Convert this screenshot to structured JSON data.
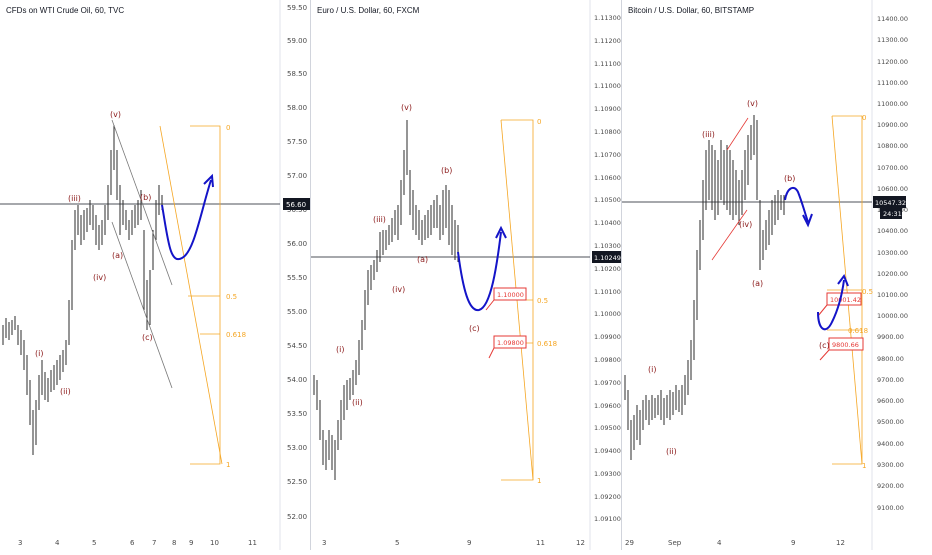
{
  "panels": [
    {
      "title": "CFDs on WTI Crude Oil, 60, TVC",
      "y_ticks": [
        "59.50",
        "59.00",
        "58.50",
        "58.00",
        "57.50",
        "57.00",
        "56.50",
        "56.00",
        "55.50",
        "55.00",
        "54.50",
        "54.00",
        "53.50",
        "53.00",
        "52.50",
        "52.00"
      ],
      "x_ticks": [
        "3",
        "4",
        "5",
        "6",
        "7",
        "8",
        "9",
        "10",
        "11"
      ],
      "price_label": "56.60",
      "wave_labels": [
        "(i)",
        "(ii)",
        "(iii)",
        "(iv)",
        "(v)",
        "(a)",
        "(b)",
        "(c)"
      ],
      "fib_labels": [
        "0",
        "0.5",
        "0.618",
        "1"
      ],
      "accent": "#8b1a1a"
    },
    {
      "title": "Euro / U.S. Dollar, 60, FXCM",
      "y_ticks": [
        "1.11300",
        "1.11200",
        "1.11100",
        "1.11000",
        "1.10900",
        "1.10800",
        "1.10700",
        "1.10600",
        "1.10500",
        "1.10400",
        "1.10300",
        "1.10200",
        "1.10100",
        "1.10000",
        "1.09900",
        "1.09800",
        "1.09700",
        "1.09600",
        "1.09500",
        "1.09400",
        "1.09300",
        "1.09200",
        "1.09100"
      ],
      "x_ticks": [
        "3",
        "5",
        "9",
        "11",
        "12"
      ],
      "price_label": "1.10249",
      "wave_labels": [
        "(i)",
        "(ii)",
        "(iii)",
        "(iv)",
        "(v)",
        "(a)",
        "(b)",
        "(c)"
      ],
      "fib_labels": [
        "0",
        "0.5",
        "0.618",
        "1"
      ],
      "callouts": [
        "1.10000",
        "1.09800"
      ],
      "accent": "#8b1a1a"
    },
    {
      "title": "Bitcoin / U.S. Dollar, 60, BITSTAMP",
      "y_ticks": [
        "11400.00",
        "11300.00",
        "11200.00",
        "11100.00",
        "11000.00",
        "10900.00",
        "10800.00",
        "10700.00",
        "10600.00",
        "10500.00",
        "10400.00",
        "10300.00",
        "10200.00",
        "10100.00",
        "10000.00",
        "9900.00",
        "9800.00",
        "9700.00",
        "9600.00",
        "9500.00",
        "9400.00",
        "9300.00",
        "9200.00",
        "9100.00"
      ],
      "x_ticks": [
        "29",
        "Sep",
        "4",
        "9",
        "12"
      ],
      "price_label": "10547.32",
      "time_label": "24:31",
      "wave_labels": [
        "(i)",
        "(ii)",
        "(iii)",
        "(iv)",
        "(v)",
        "(a)",
        "(b)",
        "(c)"
      ],
      "fib_labels": [
        "0",
        "0.5",
        "0.618",
        "1"
      ],
      "callouts": [
        "10001.42",
        "9800.66"
      ],
      "accent": "#8b1a1a"
    }
  ],
  "colors": {
    "fib": "#f5a623",
    "projection": "#1414c8",
    "labels": "#8b1a1a",
    "callout": "#e53935",
    "price_badge": "#131722"
  }
}
